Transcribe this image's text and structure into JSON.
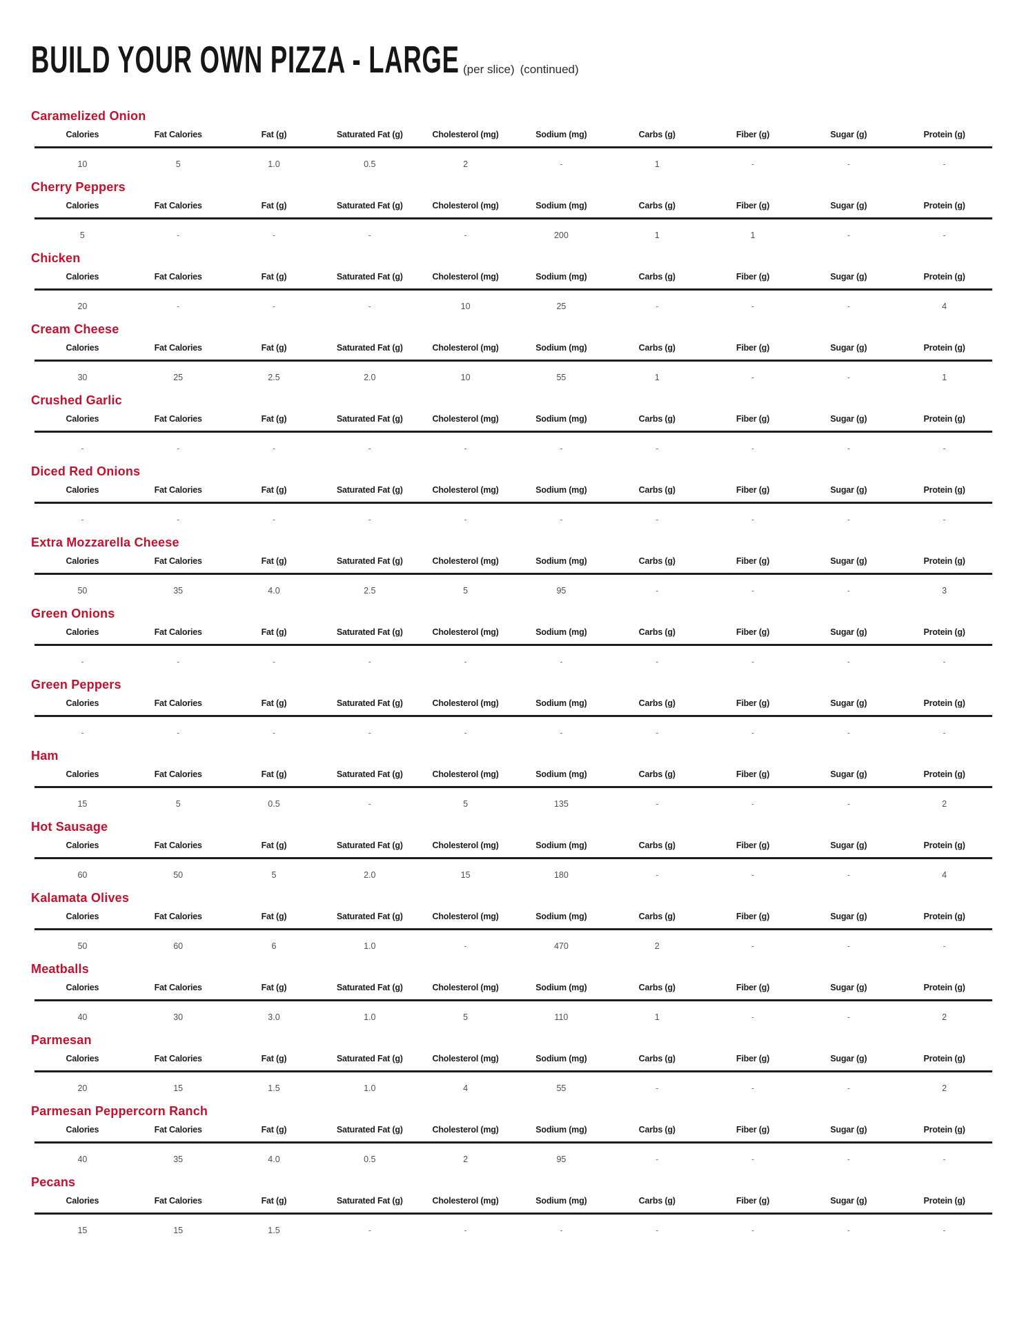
{
  "page": {
    "title": "BUILD YOUR OWN PIZZA - LARGE",
    "subtitle_1": "(per slice)",
    "subtitle_2": "(continued)"
  },
  "colors": {
    "heading_red": "#c3112e",
    "rule_black": "#1d1d1d"
  },
  "columns": [
    "Calories",
    "Fat Calories",
    "Fat (g)",
    "Saturated Fat (g)",
    "Cholesterol (mg)",
    "Sodium (mg)",
    "Carbs (g)",
    "Fiber (g)",
    "Sugar (g)",
    "Protein (g)"
  ],
  "sections": [
    {
      "name": "Caramelized Onion",
      "values": [
        "10",
        "5",
        "1.0",
        "0.5",
        "2",
        "-",
        "1",
        "-",
        "-",
        "-"
      ]
    },
    {
      "name": "Cherry Peppers",
      "values": [
        "5",
        "-",
        "-",
        "-",
        "-",
        "200",
        "1",
        "1",
        "-",
        "-"
      ]
    },
    {
      "name": "Chicken",
      "values": [
        "20",
        "-",
        "-",
        "-",
        "10",
        "25",
        "-",
        "-",
        "-",
        "4"
      ]
    },
    {
      "name": "Cream Cheese",
      "values": [
        "30",
        "25",
        "2.5",
        "2.0",
        "10",
        "55",
        "1",
        "-",
        "-",
        "1"
      ]
    },
    {
      "name": "Crushed Garlic",
      "values": [
        "-",
        "-",
        "-",
        "-",
        "-",
        "-",
        "-",
        "-",
        "-",
        "-"
      ]
    },
    {
      "name": "Diced Red Onions",
      "values": [
        "-",
        "-",
        "-",
        "-",
        "-",
        "-",
        "-",
        "-",
        "-",
        "-"
      ]
    },
    {
      "name": "Extra Mozzarella Cheese",
      "values": [
        "50",
        "35",
        "4.0",
        "2.5",
        "5",
        "95",
        "-",
        "-",
        "-",
        "3"
      ]
    },
    {
      "name": "Green Onions",
      "values": [
        "-",
        "-",
        "-",
        "-",
        "-",
        "-",
        "-",
        "-",
        "-",
        "-"
      ]
    },
    {
      "name": "Green Peppers",
      "values": [
        "-",
        "-",
        "-",
        "-",
        "-",
        "-",
        "-",
        "-",
        "-",
        "-"
      ]
    },
    {
      "name": "Ham",
      "values": [
        "15",
        "5",
        "0.5",
        "-",
        "5",
        "135",
        "-",
        "-",
        "-",
        "2"
      ]
    },
    {
      "name": "Hot Sausage",
      "values": [
        "60",
        "50",
        "5",
        "2.0",
        "15",
        "180",
        "-",
        "-",
        "-",
        "4"
      ]
    },
    {
      "name": "Kalamata Olives",
      "values": [
        "50",
        "60",
        "6",
        "1.0",
        "-",
        "470",
        "2",
        "-",
        "-",
        "-"
      ]
    },
    {
      "name": "Meatballs",
      "values": [
        "40",
        "30",
        "3.0",
        "1.0",
        "5",
        "110",
        "1",
        "-",
        "-",
        "2"
      ]
    },
    {
      "name": "Parmesan",
      "values": [
        "20",
        "15",
        "1.5",
        "1.0",
        "4",
        "55",
        "-",
        "-",
        "-",
        "2"
      ]
    },
    {
      "name": "Parmesan Peppercorn Ranch",
      "values": [
        "40",
        "35",
        "4.0",
        "0.5",
        "2",
        "95",
        "-",
        "-",
        "-",
        "-"
      ]
    },
    {
      "name": "Pecans",
      "values": [
        "15",
        "15",
        "1.5",
        "-",
        "-",
        "-",
        "-",
        "-",
        "-",
        "-"
      ]
    }
  ]
}
